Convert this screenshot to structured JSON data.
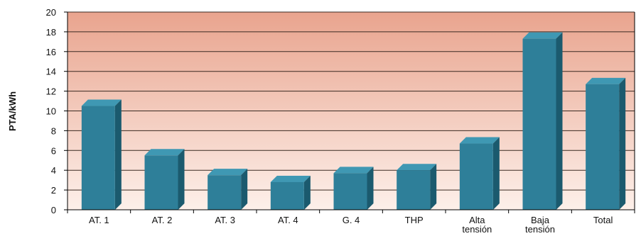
{
  "chart_data": {
    "type": "bar",
    "title": "",
    "xlabel": "",
    "ylabel": "PTA/kWh",
    "ylim": [
      0,
      20
    ],
    "yticks": [
      0,
      2,
      4,
      6,
      8,
      10,
      12,
      14,
      16,
      18,
      20
    ],
    "grid": true,
    "bar_style": "3d",
    "categories": [
      [
        "AT. 1"
      ],
      [
        "AT. 2"
      ],
      [
        "AT. 3"
      ],
      [
        "AT. 4"
      ],
      [
        "G. 4"
      ],
      [
        "THP"
      ],
      [
        "Alta",
        "tensión"
      ],
      [
        "Baja",
        "tensión"
      ],
      [
        "Total"
      ]
    ],
    "values": [
      10.5,
      5.5,
      3.5,
      2.8,
      3.7,
      4.0,
      6.7,
      17.3,
      12.7
    ],
    "colors": {
      "bar_front": "#2e7f99",
      "bar_top": "#3f98b3",
      "bar_side": "#1b5a6e",
      "background_top": "#e9a48e",
      "background_bottom": "#fdf0ea",
      "grid": "#3a2a22"
    }
  }
}
